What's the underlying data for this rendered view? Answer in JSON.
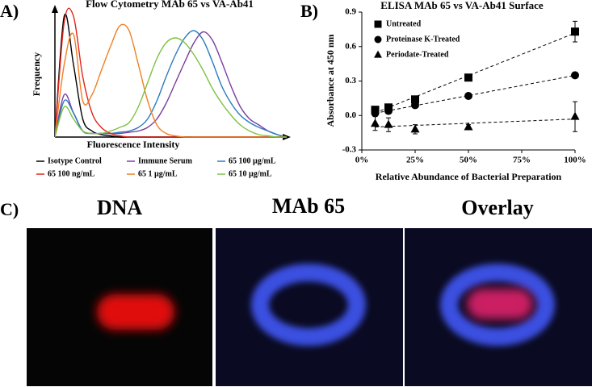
{
  "chart_data": [
    {
      "type": "line",
      "panel": "A)",
      "title": "Flow Cytometry MAb 65 vs VA-Ab41",
      "x_label": "Fluorescence Intensity",
      "y_label": "Frequency",
      "xlim": [
        0,
        100
      ],
      "ylim": [
        0,
        100
      ],
      "x": [
        0,
        4,
        8,
        12,
        16,
        20,
        24,
        28,
        32,
        36,
        40,
        44,
        48,
        52,
        56,
        60,
        64,
        68,
        72,
        76,
        80,
        84,
        88,
        92,
        96,
        100
      ],
      "series": [
        {
          "name": "Isotype Control",
          "color": "#000000",
          "values": [
            0,
            100,
            60,
            15,
            5,
            2,
            1,
            0,
            0,
            0,
            0,
            0,
            0,
            0,
            0,
            0,
            0,
            0,
            0,
            0,
            0,
            0,
            0,
            0,
            0,
            0
          ]
        },
        {
          "name": "Immune Serum",
          "color": "#7b3ea0",
          "values": [
            0,
            35,
            20,
            5,
            3,
            3,
            3,
            3,
            4,
            5,
            8,
            15,
            28,
            45,
            62,
            78,
            87,
            80,
            62,
            42,
            25,
            15,
            10,
            5,
            2,
            0
          ]
        },
        {
          "name": "65 100 µg/mL",
          "color": "#2a7bbf",
          "values": [
            0,
            30,
            20,
            5,
            3,
            3,
            3,
            4,
            5,
            8,
            15,
            30,
            50,
            68,
            82,
            88,
            80,
            62,
            42,
            28,
            18,
            12,
            8,
            5,
            2,
            0
          ]
        },
        {
          "name": "65 100 ng/mL",
          "color": "#e3231c",
          "values": [
            0,
            95,
            100,
            50,
            20,
            8,
            3,
            1,
            0,
            0,
            0,
            0,
            0,
            0,
            0,
            0,
            0,
            0,
            0,
            0,
            0,
            0,
            0,
            0,
            0,
            0
          ]
        },
        {
          "name": "65 1 µg/mL",
          "color": "#f07f23",
          "values": [
            0,
            60,
            85,
            30,
            35,
            55,
            75,
            92,
            88,
            60,
            30,
            10,
            3,
            1,
            0,
            0,
            0,
            0,
            0,
            0,
            0,
            0,
            0,
            0,
            0,
            0
          ]
        },
        {
          "name": "65 10 µg/mL",
          "color": "#7dc242",
          "values": [
            0,
            25,
            15,
            5,
            3,
            3,
            5,
            8,
            12,
            25,
            45,
            65,
            78,
            82,
            78,
            68,
            55,
            40,
            28,
            18,
            10,
            5,
            2,
            1,
            0,
            0
          ]
        }
      ]
    },
    {
      "type": "scatter",
      "panel": "B)",
      "title": "ELISA MAb 65 vs VA-Ab41 Surface",
      "x_label": "Relative Abundance of Bacterial Preparation",
      "y_label": "Absorbance at 450 nm",
      "xlim": [
        0,
        100
      ],
      "ylim": [
        -0.3,
        0.9
      ],
      "xticks": [
        {
          "value": 0,
          "label": "0%"
        },
        {
          "value": 25,
          "label": "25%"
        },
        {
          "value": 50,
          "label": "50%"
        },
        {
          "value": 75,
          "label": "75%"
        },
        {
          "value": 100,
          "label": "100%"
        }
      ],
      "yticks": [
        -0.3,
        {
          "value": 0,
          "label": "0.0"
        },
        0.3,
        0.6,
        0.9
      ],
      "x": [
        6.25,
        12.5,
        25,
        50,
        100
      ],
      "trendline": "linear",
      "series": [
        {
          "name": "Untreated",
          "marker": "square",
          "color": "#000000",
          "values": [
            0.05,
            0.07,
            0.14,
            0.33,
            0.73
          ],
          "errors": [
            0.02,
            0.02,
            0.02,
            0.03,
            0.09
          ]
        },
        {
          "name": "Proteinase K-Treated",
          "marker": "circle",
          "color": "#000000",
          "values": [
            0.02,
            0.04,
            0.09,
            0.17,
            0.35
          ],
          "errors": [
            0.01,
            0.01,
            0.01,
            0.01,
            0.01
          ]
        },
        {
          "name": "Periodate-Treated",
          "marker": "triangle",
          "color": "#000000",
          "values": [
            -0.07,
            -0.08,
            -0.12,
            -0.1,
            -0.01
          ],
          "errors": [
            0.06,
            0.06,
            0.04,
            0.02,
            0.13
          ]
        }
      ]
    }
  ],
  "panel_c": {
    "label": "C)",
    "images": [
      {
        "title": "DNA"
      },
      {
        "title": "MAb 65"
      },
      {
        "title": "Overlay"
      }
    ]
  }
}
